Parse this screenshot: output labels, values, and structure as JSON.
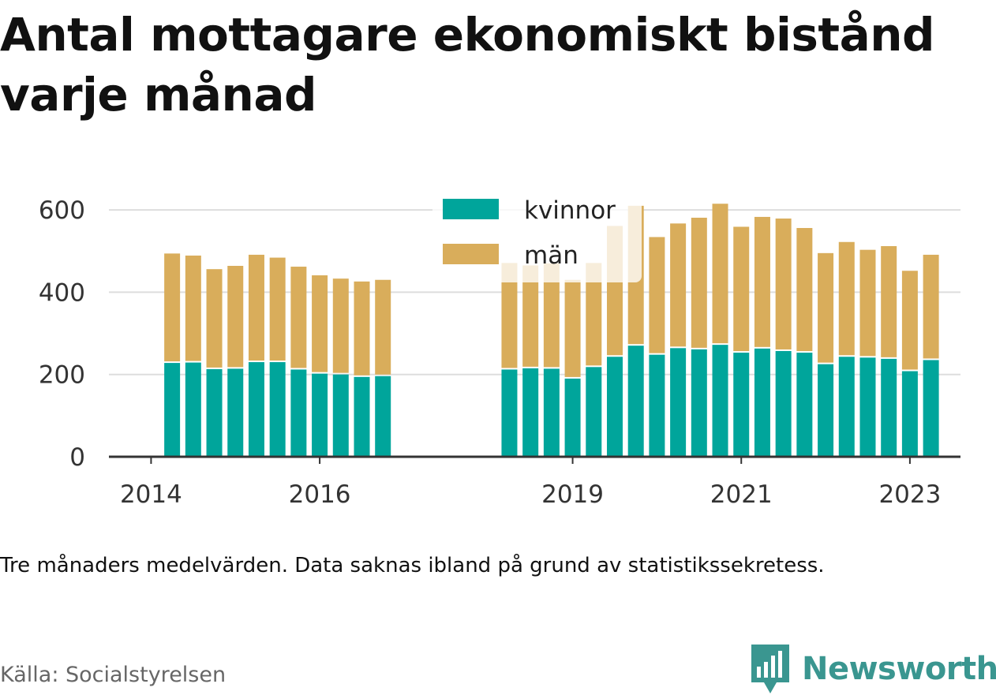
{
  "title": "Antal mottagare ekonomiskt bistånd varje månad",
  "note": "Tre månaders medelvärden. Data saknas ibland på grund av statistikssekretess.",
  "source": "Källa: Socialstyrelsen",
  "brand": {
    "name": "Newsworthy",
    "icon": "bar-chart-logo-icon",
    "color": "#3a9690"
  },
  "chart_data": {
    "type": "bar",
    "stacked": true,
    "ylim": [
      0,
      650
    ],
    "yticks": [
      0,
      200,
      400,
      600
    ],
    "xlim": [
      2013.5,
      2023.6
    ],
    "xticks": [
      "2014",
      "2016",
      "2019",
      "2021",
      "2023"
    ],
    "xtick_values": [
      2014,
      2016,
      2019,
      2021,
      2023
    ],
    "grid": true,
    "legend_position": "top-center",
    "colors": {
      "kvinnor": "#00a59b",
      "män": "#d9ad5b"
    },
    "x": [
      2014.25,
      2014.5,
      2014.75,
      2015.0,
      2015.25,
      2015.5,
      2015.75,
      2016.0,
      2016.25,
      2016.5,
      2016.75,
      2018.25,
      2018.5,
      2018.75,
      2019.0,
      2019.25,
      2019.5,
      2019.75,
      2020.0,
      2020.25,
      2020.5,
      2020.75,
      2021.0,
      2021.25,
      2021.5,
      2021.75,
      2022.0,
      2022.25,
      2022.5,
      2022.75,
      2023.0,
      2023.25
    ],
    "series": [
      {
        "name": "kvinnor",
        "values": [
          228,
          229,
          213,
          214,
          230,
          230,
          212,
          202,
          200,
          194,
          196,
          212,
          215,
          214,
          190,
          218,
          243,
          270,
          248,
          264,
          261,
          272,
          253,
          263,
          257,
          253,
          225,
          243,
          241,
          238,
          208,
          235
        ]
      },
      {
        "name": "män",
        "values": [
          266,
          260,
          243,
          250,
          261,
          254,
          250,
          239,
          233,
          232,
          234,
          259,
          250,
          256,
          240,
          253,
          318,
          340,
          286,
          303,
          320,
          343,
          306,
          320,
          322,
          303,
          270,
          279,
          262,
          274,
          244,
          256
        ]
      }
    ]
  }
}
